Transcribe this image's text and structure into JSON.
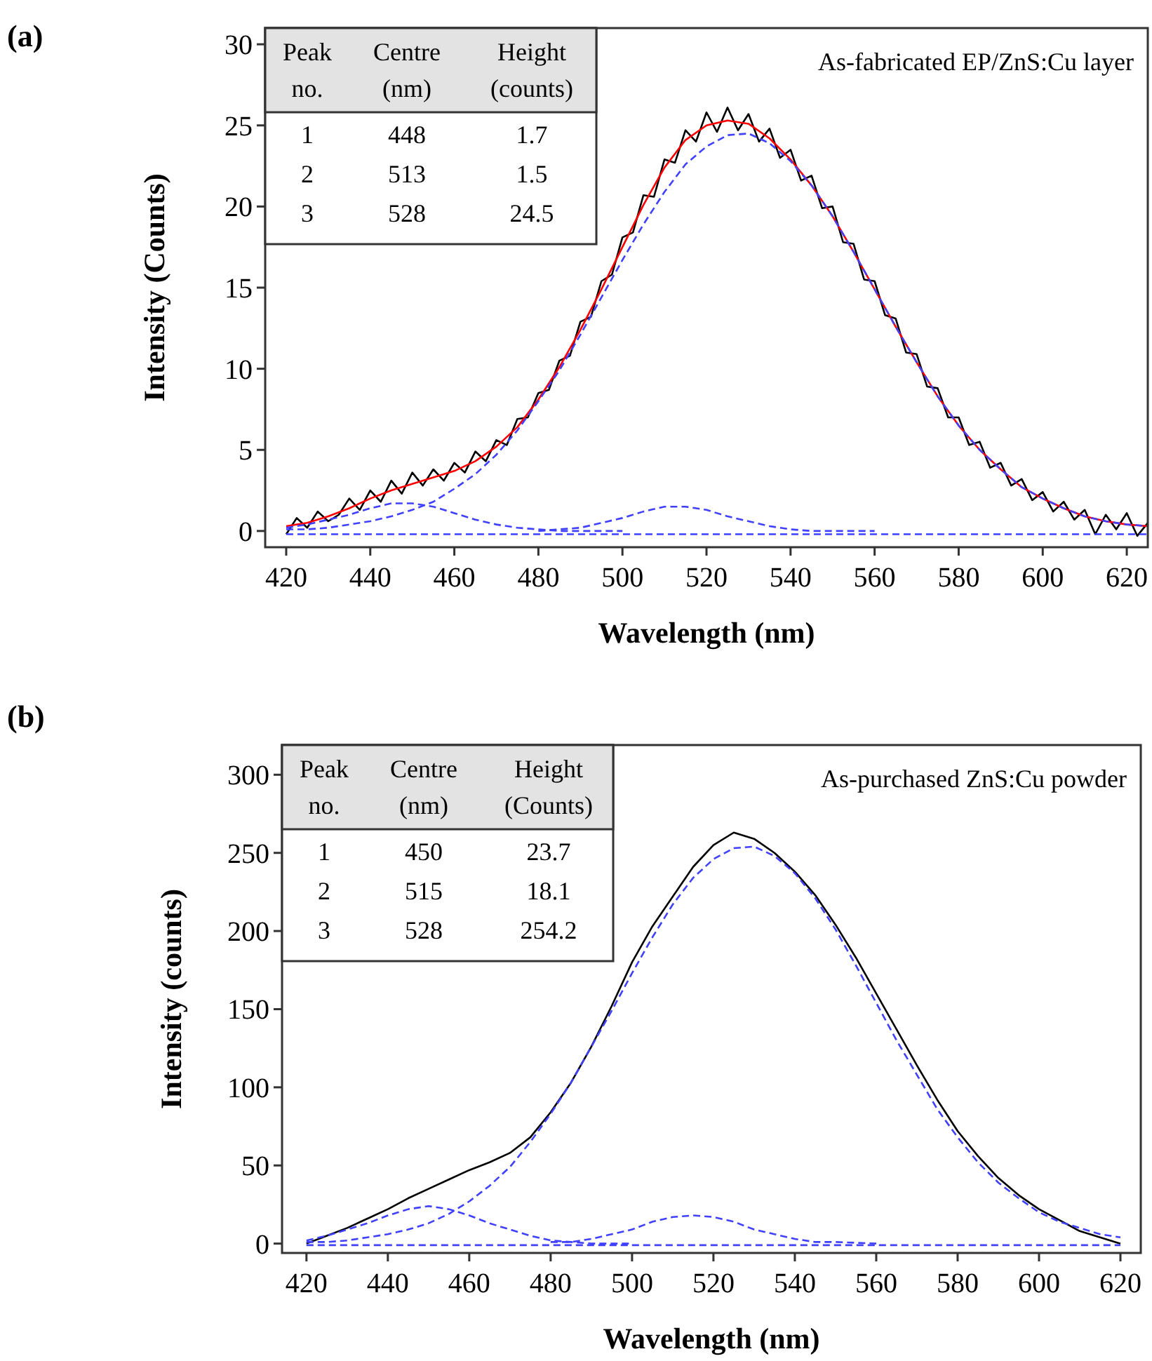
{
  "chart_data": [
    {
      "type": "line",
      "title": "(a)",
      "xlabel": "Wavelength (nm)",
      "ylabel": "Intensity (Counts)",
      "annotations": [
        "As-fabricated EP/ZnS:Cu layer",
        "Peak\nno.",
        "Centre\n(nm)",
        "Height\n(counts)",
        "1",
        "448",
        "1.7",
        "2",
        "513",
        "1.5",
        "3",
        "528",
        "24.5"
      ],
      "xlim": [
        415,
        625
      ],
      "ylim": [
        -1,
        31
      ],
      "xticks": [
        420,
        440,
        460,
        480,
        500,
        520,
        540,
        560,
        580,
        600,
        620
      ],
      "yticks": [
        0,
        5,
        10,
        15,
        20,
        25,
        30
      ],
      "grid": false,
      "series": [
        {
          "color": "#000000",
          "line_style": "solid",
          "x": [
            420,
            422.5,
            425,
            427.5,
            430,
            432.5,
            435,
            437.5,
            440,
            442.5,
            445,
            447.5,
            450,
            452.5,
            455,
            457.5,
            460,
            462.5,
            465,
            467.5,
            470,
            472.5,
            475,
            477.5,
            480,
            482.5,
            485,
            487.5,
            490,
            492.5,
            495,
            497.5,
            500,
            502.5,
            505,
            507.5,
            510,
            512.5,
            515,
            517.5,
            520,
            522.5,
            525,
            527.5,
            530,
            532.5,
            535,
            537.5,
            540,
            542.5,
            545,
            547.5,
            550,
            552.5,
            555,
            557.5,
            560,
            562.5,
            565,
            567.5,
            570,
            572.5,
            575,
            577.5,
            580,
            582.5,
            585,
            587.5,
            590,
            592.5,
            595,
            597.5,
            600,
            602.5,
            605,
            607.5,
            610,
            612.5,
            615,
            617.5,
            620,
            622.5,
            625
          ],
          "values": [
            -0.2,
            0.8,
            0.2,
            1.2,
            0.6,
            1.0,
            2.0,
            1.3,
            2.5,
            1.8,
            3.1,
            2.3,
            3.6,
            2.8,
            3.8,
            3.1,
            4.2,
            3.6,
            4.9,
            4.3,
            5.6,
            5.3,
            6.9,
            7.0,
            8.5,
            8.7,
            10.5,
            10.8,
            12.9,
            13.2,
            15.4,
            15.8,
            18.1,
            18.4,
            20.7,
            20.6,
            22.9,
            22.7,
            24.7,
            24.0,
            25.8,
            24.6,
            26.1,
            24.7,
            25.7,
            24.0,
            24.8,
            23.0,
            23.5,
            21.6,
            21.9,
            19.9,
            20.0,
            17.8,
            17.7,
            15.5,
            15.4,
            13.3,
            13.1,
            11.0,
            10.9,
            8.9,
            8.8,
            7.0,
            7.0,
            5.3,
            5.5,
            3.9,
            4.2,
            2.8,
            3.2,
            1.9,
            2.4,
            1.2,
            1.8,
            0.7,
            1.3,
            -0.2,
            1.0,
            0.1,
            1.1,
            -0.3,
            0.5
          ]
        },
        {
          "color": "#ff0000",
          "line_style": "solid",
          "x": [
            420,
            425,
            430,
            435,
            440,
            445,
            450,
            455,
            460,
            465,
            470,
            475,
            480,
            485,
            490,
            495,
            500,
            505,
            510,
            515,
            520,
            525,
            530,
            535,
            540,
            545,
            550,
            555,
            560,
            565,
            570,
            575,
            580,
            585,
            590,
            595,
            600,
            605,
            610,
            615,
            620,
            625
          ],
          "values": [
            0.3,
            0.5,
            0.9,
            1.4,
            2.0,
            2.5,
            2.9,
            3.3,
            3.7,
            4.3,
            5.2,
            6.4,
            8.1,
            10.1,
            12.4,
            14.9,
            17.5,
            20.1,
            22.4,
            24.1,
            25.0,
            25.3,
            25.1,
            24.2,
            22.9,
            21.3,
            19.4,
            17.2,
            14.9,
            12.6,
            10.4,
            8.3,
            6.5,
            5.0,
            3.8,
            2.7,
            2.0,
            1.4,
            0.9,
            0.6,
            0.4,
            0.3
          ]
        },
        {
          "color": "#4040ff",
          "line_style": "dashed",
          "x": [
            420,
            425,
            430,
            435,
            440,
            445,
            450,
            455,
            460,
            465,
            470,
            475,
            480,
            485,
            490,
            495,
            500,
            505,
            510,
            515,
            520,
            525,
            530,
            535,
            540,
            545,
            550,
            555,
            560,
            565,
            570,
            575,
            580,
            585,
            590,
            595,
            600,
            605,
            610,
            615,
            620,
            625
          ],
          "values": [
            0.1,
            0.1,
            0.2,
            0.4,
            0.6,
            0.9,
            1.3,
            1.8,
            2.6,
            3.5,
            4.7,
            6.2,
            8.0,
            9.9,
            12.1,
            14.4,
            16.7,
            18.9,
            20.9,
            22.6,
            23.7,
            24.4,
            24.5,
            23.9,
            22.8,
            21.3,
            19.4,
            17.2,
            14.9,
            12.6,
            10.4,
            8.3,
            6.5,
            5.0,
            3.8,
            2.7,
            2.0,
            1.4,
            0.9,
            0.6,
            0.4,
            0.3
          ]
        },
        {
          "color": "#4040ff",
          "line_style": "dashed",
          "x": [
            420,
            425,
            430,
            435,
            440,
            445,
            450,
            455,
            460,
            465,
            470,
            475,
            480,
            485,
            490,
            500
          ],
          "values": [
            0.2,
            0.4,
            0.7,
            1.0,
            1.4,
            1.7,
            1.7,
            1.5,
            1.1,
            0.7,
            0.4,
            0.2,
            0.1,
            0.0,
            0.0,
            0.0
          ]
        },
        {
          "color": "#4040ff",
          "line_style": "dashed",
          "x": [
            480,
            485,
            490,
            495,
            500,
            505,
            510,
            515,
            520,
            525,
            530,
            535,
            540,
            545,
            550,
            560
          ],
          "values": [
            0.0,
            0.1,
            0.2,
            0.5,
            0.8,
            1.2,
            1.5,
            1.5,
            1.3,
            0.9,
            0.6,
            0.3,
            0.1,
            0.0,
            0.0,
            0.0
          ]
        },
        {
          "color": "#4040ff",
          "line_style": "dashed",
          "x": [
            420,
            625
          ],
          "values": [
            -0.2,
            -0.2
          ]
        }
      ]
    },
    {
      "type": "line",
      "title": "(b)",
      "xlabel": "Wavelength (nm)",
      "ylabel": "Intensity (counts)",
      "annotations": [
        "As-purchased ZnS:Cu powder",
        "Peak\nno.",
        "Centre\n(nm)",
        "Height\n(Counts)",
        "1",
        "450",
        "23.7",
        "2",
        "515",
        "18.1",
        "3",
        "528",
        "254.2"
      ],
      "xlim": [
        414,
        625
      ],
      "ylim": [
        -6,
        319
      ],
      "xticks": [
        420,
        440,
        460,
        480,
        500,
        520,
        540,
        560,
        580,
        600,
        620
      ],
      "yticks": [
        0,
        50,
        100,
        150,
        200,
        250,
        300
      ],
      "grid": false,
      "series": [
        {
          "color": "#000000",
          "line_style": "solid",
          "x": [
            420,
            425,
            430,
            435,
            440,
            445,
            450,
            455,
            460,
            465,
            470,
            475,
            480,
            485,
            490,
            495,
            500,
            505,
            510,
            515,
            520,
            525,
            530,
            535,
            540,
            545,
            550,
            555,
            560,
            565,
            570,
            575,
            580,
            585,
            590,
            595,
            600,
            605,
            610,
            615,
            620
          ],
          "values": [
            0,
            5,
            10,
            16,
            22,
            29,
            35,
            41,
            47,
            52,
            58,
            68,
            84,
            103,
            126,
            152,
            180,
            203,
            222,
            241,
            255,
            263,
            259,
            250,
            238,
            223,
            204,
            183,
            160,
            137,
            114,
            92,
            72,
            56,
            42,
            31,
            22,
            15,
            8,
            4,
            0
          ]
        },
        {
          "color": "#4040ff",
          "line_style": "dashed",
          "x": [
            420,
            425,
            430,
            435,
            440,
            445,
            450,
            455,
            460,
            465,
            470,
            475,
            480,
            485,
            490,
            495,
            500,
            505,
            510,
            515,
            520,
            525,
            530,
            535,
            540,
            545,
            550,
            555,
            560,
            565,
            570,
            575,
            580,
            585,
            590,
            595,
            600,
            605,
            610,
            615,
            620
          ],
          "values": [
            1,
            1,
            2,
            4,
            6,
            9,
            13,
            19,
            27,
            37,
            49,
            65,
            83,
            103,
            126,
            149,
            173,
            196,
            217,
            234,
            246,
            253,
            254,
            248,
            237,
            221,
            201,
            178,
            154,
            130,
            108,
            86,
            68,
            52,
            39,
            29,
            20,
            14,
            10,
            6,
            4
          ]
        },
        {
          "color": "#4040ff",
          "line_style": "dashed",
          "x": [
            420,
            425,
            430,
            435,
            440,
            445,
            450,
            455,
            460,
            465,
            470,
            475,
            480,
            485,
            490,
            500
          ],
          "values": [
            2,
            5,
            9,
            13,
            18,
            22,
            24,
            22,
            18,
            13,
            9,
            5,
            2,
            1,
            0,
            0
          ]
        },
        {
          "color": "#4040ff",
          "line_style": "dashed",
          "x": [
            480,
            485,
            490,
            495,
            500,
            505,
            510,
            515,
            520,
            525,
            530,
            535,
            540,
            545,
            550,
            560
          ],
          "values": [
            1,
            1,
            3,
            6,
            9,
            14,
            17,
            18,
            17,
            14,
            9,
            6,
            3,
            1,
            1,
            0
          ]
        },
        {
          "color": "#4040ff",
          "line_style": "dashed",
          "x": [
            420,
            620
          ],
          "values": [
            -1,
            -1
          ]
        }
      ]
    }
  ]
}
